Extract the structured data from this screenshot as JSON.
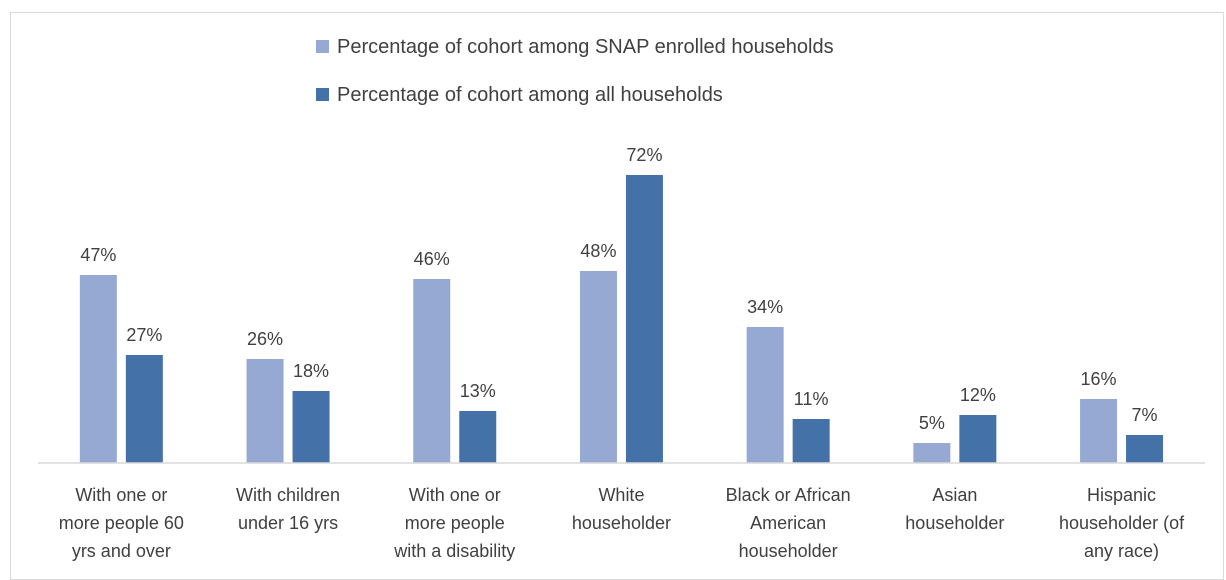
{
  "chart_data": {
    "type": "bar",
    "title": "",
    "xlabel": "",
    "ylabel": "",
    "ylim": [
      0,
      75
    ],
    "grid": false,
    "legend_placement": "top-center",
    "categories": [
      [
        "With one or",
        "more people 60",
        "yrs and over"
      ],
      [
        "With children",
        "under 16 yrs"
      ],
      [
        "With one or",
        "more people",
        "with a disability"
      ],
      [
        "White",
        "householder"
      ],
      [
        "Black or African",
        "American",
        "householder"
      ],
      [
        "Asian",
        "householder"
      ],
      [
        "Hispanic",
        "householder (of",
        "any race)"
      ]
    ],
    "series": [
      {
        "name": "Percentage of cohort among SNAP enrolled households",
        "color": "#95a9d2",
        "values": [
          47,
          26,
          46,
          48,
          34,
          5,
          16
        ],
        "labels": [
          "47%",
          "26%",
          "46%",
          "48%",
          "34%",
          "5%",
          "16%"
        ]
      },
      {
        "name": "Percentage of cohort among all households",
        "color": "#4472a8",
        "values": [
          27,
          18,
          13,
          72,
          11,
          12,
          7
        ],
        "labels": [
          "27%",
          "18%",
          "13%",
          "72%",
          "11%",
          "12%",
          "7%"
        ]
      }
    ]
  }
}
